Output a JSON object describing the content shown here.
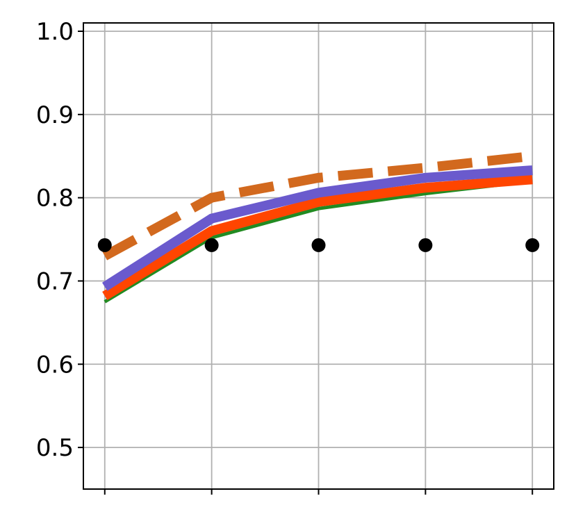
{
  "chart_data": {
    "type": "line",
    "title": "",
    "xlabel": "",
    "ylabel": "",
    "x": [
      1,
      2,
      3,
      4,
      5
    ],
    "xlim": [
      0.8,
      5.2
    ],
    "ylim": [
      0.45,
      1.01
    ],
    "yticks": [
      0.5,
      0.6,
      0.7,
      0.8,
      0.9,
      1.0
    ],
    "ytick_labels": [
      "0.5",
      "0.6",
      "0.7",
      "0.8",
      "0.9",
      "1.0"
    ],
    "grid": true,
    "series": [
      {
        "values": [
          0.675,
          0.752,
          0.787,
          0.805,
          0.82
        ],
        "color": "#228B22",
        "style": "solid",
        "width": "thin"
      },
      {
        "values": [
          0.682,
          0.76,
          0.795,
          0.812,
          0.822
        ],
        "color": "#FF4500",
        "style": "solid",
        "width": "thick"
      },
      {
        "values": [
          0.693,
          0.775,
          0.806,
          0.824,
          0.833
        ],
        "color": "#6A5ACD",
        "style": "solid",
        "width": "thick"
      },
      {
        "values": [
          0.73,
          0.8,
          0.824,
          0.836,
          0.85
        ],
        "color": "#D2691E",
        "style": "dashed",
        "width": "thick"
      },
      {
        "values": [
          0.743,
          0.743,
          0.743,
          0.743,
          0.743
        ],
        "color": "#000000",
        "style": "markers",
        "width": "none"
      }
    ]
  }
}
